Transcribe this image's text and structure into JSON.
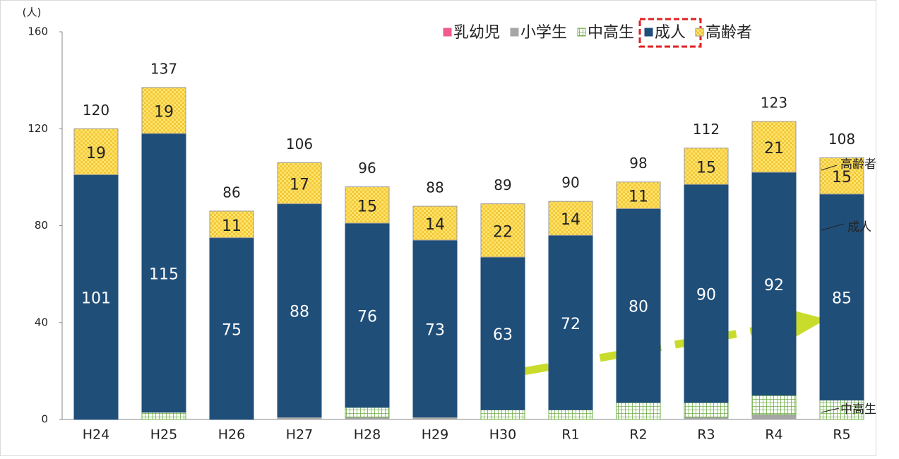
{
  "chart_data": {
    "type": "stacked_bar",
    "y_label": "(人)",
    "categories": [
      "H24",
      "H25",
      "H26",
      "H27",
      "H28",
      "H29",
      "H30",
      "R1",
      "R2",
      "R3",
      "R4",
      "R5"
    ],
    "series": [
      {
        "name": "乳幼児",
        "color": "#ef5b8f",
        "values": [
          0,
          0,
          0,
          0,
          0,
          0,
          0,
          0,
          0,
          0,
          0,
          0
        ]
      },
      {
        "name": "小学生",
        "color": "#a6a6a6",
        "values": [
          0,
          0,
          0,
          1,
          1,
          1,
          0,
          0,
          0,
          1,
          2,
          0
        ]
      },
      {
        "name": "中高生",
        "color": "#70ad47",
        "values": [
          0,
          3,
          0,
          0,
          4,
          0,
          4,
          4,
          7,
          6,
          8,
          8
        ]
      },
      {
        "name": "成人",
        "color": "#1f4e79",
        "values": [
          101,
          115,
          75,
          88,
          76,
          73,
          63,
          72,
          80,
          90,
          92,
          85
        ],
        "data_labels": true
      },
      {
        "name": "高齢者",
        "color": "#ffe36b",
        "values": [
          19,
          19,
          11,
          17,
          15,
          14,
          22,
          14,
          11,
          15,
          21,
          15
        ],
        "data_labels": true
      }
    ],
    "totals": [
      120,
      137,
      86,
      106,
      96,
      88,
      89,
      90,
      98,
      112,
      123,
      108
    ],
    "annotations": [
      "高齢者",
      "成人",
      "中高生"
    ],
    "ylim": [
      0,
      160
    ],
    "yticks": [
      0,
      40,
      80,
      120,
      160
    ],
    "grid": false
  }
}
